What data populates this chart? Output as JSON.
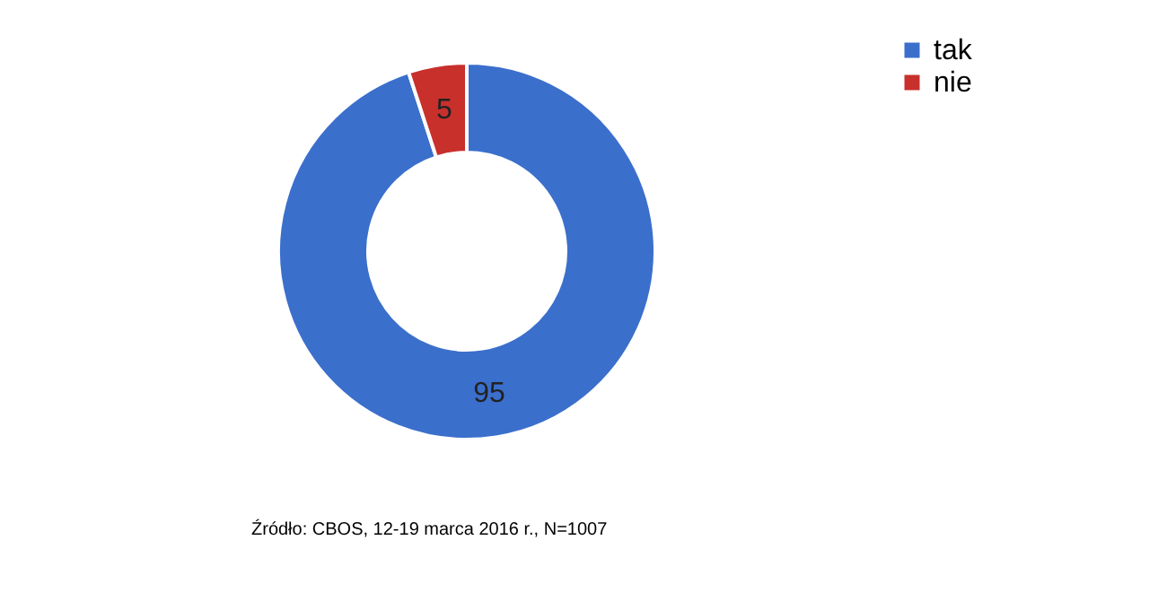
{
  "chart_data": {
    "type": "donut",
    "categories": [
      "tak",
      "nie"
    ],
    "values": [
      95,
      5
    ],
    "colors": [
      "#3b6fcc",
      "#c8302c"
    ],
    "data_labels": true,
    "legend": "right",
    "annotations": [
      "Źródło: CBOS, 12-19 marca 2016 r., N=1007"
    ]
  }
}
